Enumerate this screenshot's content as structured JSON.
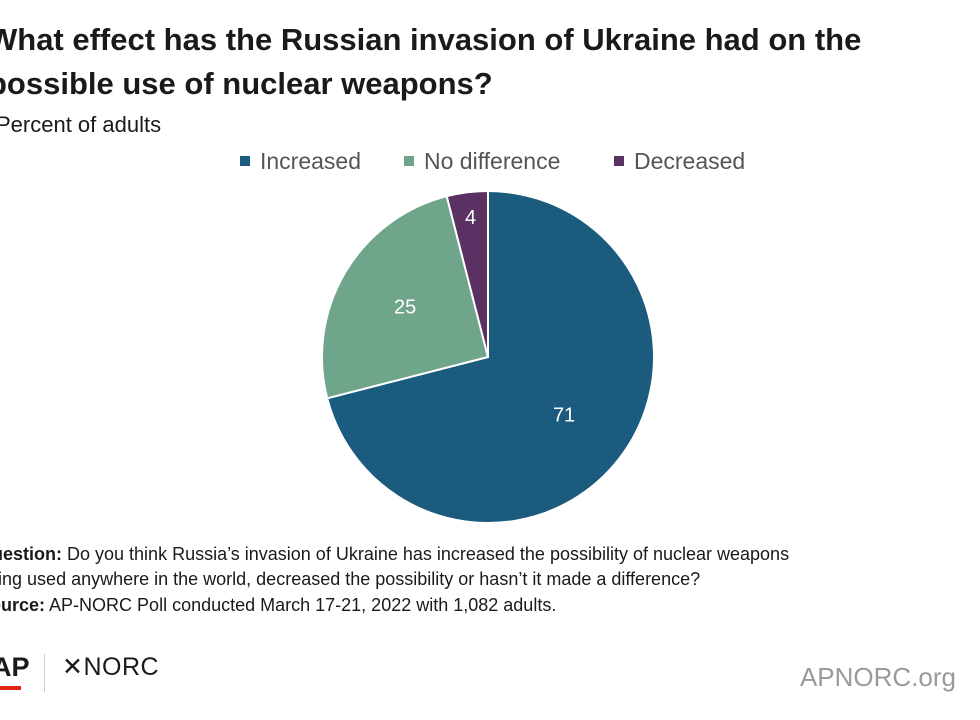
{
  "header": {
    "title_line1": "What effect has the Russian invasion of Ukraine had on the",
    "title_line2": "possible use of nuclear weapons?",
    "subtitle": "Percent of adults"
  },
  "chart_data": {
    "type": "pie",
    "title": "What effect has the Russian invasion of Ukraine had on the possible use of nuclear weapons?",
    "subtitle": "Percent of adults",
    "legend_position": "top",
    "slices": [
      {
        "name": "Increased",
        "value": 71,
        "label": "71",
        "color": "#1b5b7e"
      },
      {
        "name": "No difference",
        "value": 25,
        "label": "25",
        "color": "#6fa58a"
      },
      {
        "name": "Decreased",
        "value": 4,
        "label": "4",
        "color": "#5b3063"
      }
    ]
  },
  "notes": {
    "question_label": "Question:",
    "question_line1": "Do you think Russia’s invasion of Ukraine has increased the possibility of nuclear weapons",
    "question_line2": "being used anywhere in the world, decreased the possibility or hasn’t it made a difference?",
    "source_label": "Source:",
    "source_text": "AP-NORC Poll conducted March 17-21, 2022 with 1,082 adults."
  },
  "footer": {
    "ap_logo": "AP",
    "norc_logo": "✕NORC",
    "site": "APNORC.org"
  }
}
